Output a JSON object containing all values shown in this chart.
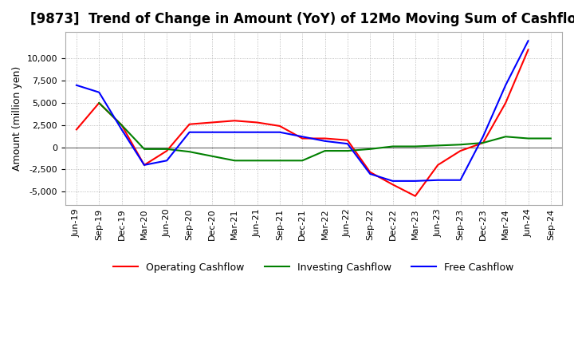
{
  "title": "[9873]  Trend of Change in Amount (YoY) of 12Mo Moving Sum of Cashflows",
  "ylabel": "Amount (million yen)",
  "x_labels": [
    "Jun-19",
    "Sep-19",
    "Dec-19",
    "Mar-20",
    "Jun-20",
    "Sep-20",
    "Dec-20",
    "Mar-21",
    "Jun-21",
    "Sep-21",
    "Dec-21",
    "Mar-22",
    "Jun-22",
    "Sep-22",
    "Dec-22",
    "Mar-23",
    "Jun-23",
    "Sep-23",
    "Dec-23",
    "Mar-24",
    "Jun-24",
    "Sep-24"
  ],
  "operating": [
    2000,
    5000,
    2500,
    -2000,
    -400,
    2600,
    2800,
    3000,
    2800,
    2400,
    1000,
    1000,
    800,
    -2800,
    -4200,
    -5500,
    -2000,
    -400,
    500,
    5000,
    11000,
    null
  ],
  "investing": [
    null,
    5000,
    2500,
    -200,
    -200,
    -500,
    -1000,
    -1500,
    -1500,
    -1500,
    -1500,
    -400,
    -400,
    -200,
    100,
    100,
    200,
    300,
    500,
    1200,
    1000,
    1000
  ],
  "free": [
    7000,
    6200,
    2000,
    -2000,
    -1500,
    1700,
    1700,
    1700,
    1700,
    1700,
    1200,
    700,
    400,
    -3000,
    -3800,
    -3800,
    -3700,
    -3700,
    1200,
    7000,
    12000,
    null
  ],
  "operating_color": "#ff0000",
  "investing_color": "#008000",
  "free_color": "#0000ff",
  "ylim": [
    -6500,
    13000
  ],
  "yticks": [
    -5000,
    -2500,
    0,
    2500,
    5000,
    7500,
    10000
  ],
  "background_color": "#ffffff",
  "grid_color": "#aaaaaa",
  "title_fontsize": 12,
  "axis_fontsize": 9,
  "tick_fontsize": 8
}
